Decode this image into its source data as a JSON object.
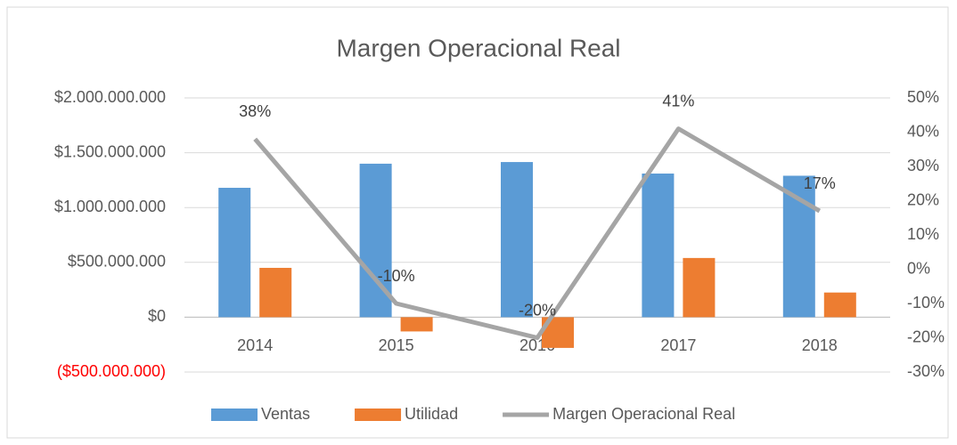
{
  "chart_data": {
    "type": "combo",
    "title": "Margen Operacional Real",
    "categories": [
      "2014",
      "2015",
      "2016",
      "2017",
      "2018"
    ],
    "series": [
      {
        "name": "Ventas",
        "type": "bar",
        "color": "#5b9bd5",
        "values": [
          1180000000,
          1400000000,
          1415000000,
          1310000000,
          1290000000
        ]
      },
      {
        "name": "Utilidad",
        "type": "bar",
        "color": "#ed7d31",
        "values": [
          450000000,
          -130000000,
          -280000000,
          540000000,
          225000000
        ]
      },
      {
        "name": "Margen Operacional Real",
        "type": "line",
        "axis": "y2",
        "color": "#a5a5a5",
        "values": [
          38,
          -10,
          -20,
          41,
          17
        ],
        "value_labels": [
          "38%",
          "-10%",
          "-20%",
          "41%",
          "17%"
        ]
      }
    ],
    "ylim": [
      -500000000,
      2000000000
    ],
    "yticks": [
      {
        "value": -500000000,
        "label": "($500.000.000)",
        "color": "#ff0000"
      },
      {
        "value": 0,
        "label": "$0"
      },
      {
        "value": 500000000,
        "label": "$500.000.000"
      },
      {
        "value": 1000000000,
        "label": "$1.000.000.000"
      },
      {
        "value": 1500000000,
        "label": "$1.500.000.000"
      },
      {
        "value": 2000000000,
        "label": "$2.000.000.000"
      }
    ],
    "y2lim": [
      -30,
      50
    ],
    "y2ticks": [
      {
        "value": -30,
        "label": "-30%"
      },
      {
        "value": -20,
        "label": "-20%"
      },
      {
        "value": -10,
        "label": "-10%"
      },
      {
        "value": 0,
        "label": "0%"
      },
      {
        "value": 10,
        "label": "10%"
      },
      {
        "value": 20,
        "label": "20%"
      },
      {
        "value": 30,
        "label": "30%"
      },
      {
        "value": 40,
        "label": "40%"
      },
      {
        "value": 50,
        "label": "50%"
      }
    ],
    "grid": true,
    "legend": "bottom"
  }
}
